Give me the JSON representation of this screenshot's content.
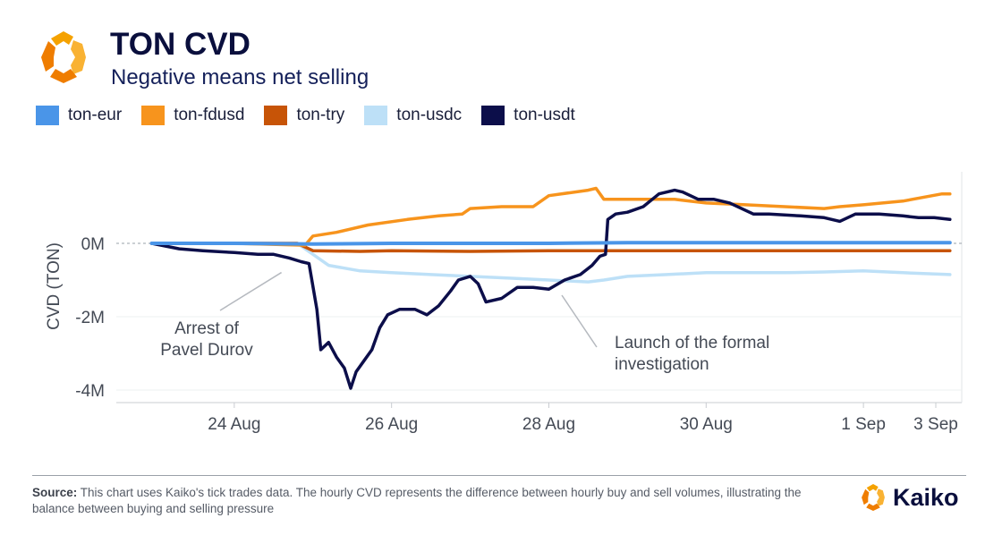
{
  "header": {
    "title": "TON CVD",
    "subtitle": "Negative means net selling"
  },
  "footer": {
    "source_label": "Source:",
    "source_text": " This chart uses Kaiko's tick trades data. The hourly CVD represents the difference between hourly buy and sell volumes, illustrating the balance between buying and selling pressure",
    "brand": "Kaiko"
  },
  "colors": {
    "logo_orange": "#f5a200",
    "logo_dark_orange": "#ef7d00"
  },
  "chart_data": {
    "type": "line",
    "title": "TON CVD",
    "subtitle": "Negative means net selling",
    "ylabel": "CVD (TON)",
    "xlabel": "",
    "x_unit": "days (Aug 2024)",
    "xlim": [
      22.5,
      33.25
    ],
    "ylim": [
      -4.3,
      2.0
    ],
    "grid": "horizontal",
    "legend_position": "top-left",
    "y_ticks": [
      {
        "value": 0,
        "label": "0M"
      },
      {
        "value": -2,
        "label": "-2M"
      },
      {
        "value": -4,
        "label": "-4M"
      }
    ],
    "x_ticks": [
      {
        "value": 24,
        "label": "24 Aug"
      },
      {
        "value": 26,
        "label": "26 Aug"
      },
      {
        "value": 28,
        "label": "28 Aug"
      },
      {
        "value": 30,
        "label": "30 Aug"
      },
      {
        "value": 32,
        "label": "1 Sep"
      },
      {
        "value": 34,
        "label": "3 Sep"
      }
    ],
    "annotations": [
      {
        "lines": [
          "Arrest of",
          "Pavel Durov"
        ],
        "x": 24.6,
        "y": -0.55
      },
      {
        "lines": [
          "Launch of the formal",
          "investigation"
        ],
        "x": 28.6,
        "y": -1.5
      }
    ],
    "series": [
      {
        "name": "ton-eur",
        "color": "#4a95e8",
        "width": 4,
        "points": [
          [
            22.95,
            0
          ],
          [
            24,
            0
          ],
          [
            25,
            -0.02
          ],
          [
            26,
            0
          ],
          [
            27,
            0
          ],
          [
            28,
            0
          ],
          [
            29,
            0.02
          ],
          [
            30,
            0.02
          ],
          [
            31,
            0.02
          ],
          [
            32,
            0.02
          ],
          [
            33.1,
            0.02
          ]
        ]
      },
      {
        "name": "ton-fdusd",
        "color": "#f7941d",
        "width": 3.5,
        "points": [
          [
            22.95,
            0
          ],
          [
            24,
            0
          ],
          [
            24.9,
            -0.05
          ],
          [
            25.0,
            0.2
          ],
          [
            25.3,
            0.3
          ],
          [
            25.7,
            0.5
          ],
          [
            26.2,
            0.65
          ],
          [
            26.6,
            0.75
          ],
          [
            26.9,
            0.8
          ],
          [
            27.0,
            0.95
          ],
          [
            27.4,
            1.0
          ],
          [
            27.8,
            1.0
          ],
          [
            28.0,
            1.3
          ],
          [
            28.5,
            1.45
          ],
          [
            28.6,
            1.5
          ],
          [
            28.7,
            1.2
          ],
          [
            29.2,
            1.2
          ],
          [
            29.6,
            1.2
          ],
          [
            30.0,
            1.1
          ],
          [
            30.5,
            1.05
          ],
          [
            31.0,
            1.0
          ],
          [
            31.5,
            0.95
          ],
          [
            31.7,
            1.0
          ],
          [
            32.0,
            1.05
          ],
          [
            32.5,
            1.15
          ],
          [
            33.0,
            1.35
          ],
          [
            33.1,
            1.35
          ]
        ]
      },
      {
        "name": "ton-try",
        "color": "#c75407",
        "width": 3.5,
        "points": [
          [
            22.95,
            0
          ],
          [
            24.8,
            0
          ],
          [
            25.0,
            -0.2
          ],
          [
            25.6,
            -0.22
          ],
          [
            26.0,
            -0.2
          ],
          [
            27.0,
            -0.22
          ],
          [
            28.0,
            -0.2
          ],
          [
            29.0,
            -0.2
          ],
          [
            30.0,
            -0.2
          ],
          [
            31.0,
            -0.2
          ],
          [
            32.0,
            -0.2
          ],
          [
            33.1,
            -0.2
          ]
        ]
      },
      {
        "name": "ton-usdc",
        "color": "#bde0f7",
        "width": 3.5,
        "points": [
          [
            22.95,
            0
          ],
          [
            24.8,
            0
          ],
          [
            25.2,
            -0.6
          ],
          [
            25.6,
            -0.75
          ],
          [
            26.0,
            -0.8
          ],
          [
            26.5,
            -0.85
          ],
          [
            27.0,
            -0.9
          ],
          [
            27.5,
            -0.95
          ],
          [
            28.0,
            -1.0
          ],
          [
            28.5,
            -1.05
          ],
          [
            28.7,
            -1.0
          ],
          [
            29.0,
            -0.9
          ],
          [
            29.5,
            -0.85
          ],
          [
            30.0,
            -0.8
          ],
          [
            30.5,
            -0.8
          ],
          [
            31.0,
            -0.8
          ],
          [
            31.5,
            -0.78
          ],
          [
            32.0,
            -0.75
          ],
          [
            32.5,
            -0.8
          ],
          [
            33.1,
            -0.85
          ]
        ]
      },
      {
        "name": "ton-usdt",
        "color": "#0c0e4a",
        "width": 3.5,
        "points": [
          [
            22.95,
            0
          ],
          [
            23.3,
            -0.15
          ],
          [
            23.6,
            -0.2
          ],
          [
            24.0,
            -0.25
          ],
          [
            24.3,
            -0.3
          ],
          [
            24.5,
            -0.3
          ],
          [
            24.7,
            -0.4
          ],
          [
            24.85,
            -0.5
          ],
          [
            24.95,
            -0.55
          ],
          [
            25.05,
            -1.8
          ],
          [
            25.1,
            -2.9
          ],
          [
            25.2,
            -2.7
          ],
          [
            25.3,
            -3.1
          ],
          [
            25.4,
            -3.4
          ],
          [
            25.48,
            -3.95
          ],
          [
            25.55,
            -3.5
          ],
          [
            25.65,
            -3.2
          ],
          [
            25.75,
            -2.9
          ],
          [
            25.85,
            -2.3
          ],
          [
            25.95,
            -1.95
          ],
          [
            26.1,
            -1.8
          ],
          [
            26.3,
            -1.8
          ],
          [
            26.45,
            -1.95
          ],
          [
            26.6,
            -1.7
          ],
          [
            26.75,
            -1.3
          ],
          [
            26.85,
            -1.0
          ],
          [
            27.0,
            -0.9
          ],
          [
            27.1,
            -1.1
          ],
          [
            27.2,
            -1.6
          ],
          [
            27.4,
            -1.5
          ],
          [
            27.6,
            -1.2
          ],
          [
            27.8,
            -1.2
          ],
          [
            28.0,
            -1.25
          ],
          [
            28.2,
            -1.0
          ],
          [
            28.4,
            -0.85
          ],
          [
            28.55,
            -0.6
          ],
          [
            28.65,
            -0.35
          ],
          [
            28.72,
            -0.3
          ],
          [
            28.75,
            0.65
          ],
          [
            28.85,
            0.8
          ],
          [
            29.0,
            0.85
          ],
          [
            29.2,
            1.0
          ],
          [
            29.4,
            1.35
          ],
          [
            29.6,
            1.45
          ],
          [
            29.7,
            1.4
          ],
          [
            29.9,
            1.2
          ],
          [
            30.1,
            1.2
          ],
          [
            30.3,
            1.1
          ],
          [
            30.6,
            0.8
          ],
          [
            30.8,
            0.8
          ],
          [
            31.2,
            0.75
          ],
          [
            31.5,
            0.7
          ],
          [
            31.7,
            0.6
          ],
          [
            31.9,
            0.8
          ],
          [
            32.2,
            0.8
          ],
          [
            32.5,
            0.75
          ],
          [
            32.7,
            0.7
          ],
          [
            32.9,
            0.7
          ],
          [
            33.1,
            0.65
          ]
        ]
      }
    ]
  }
}
